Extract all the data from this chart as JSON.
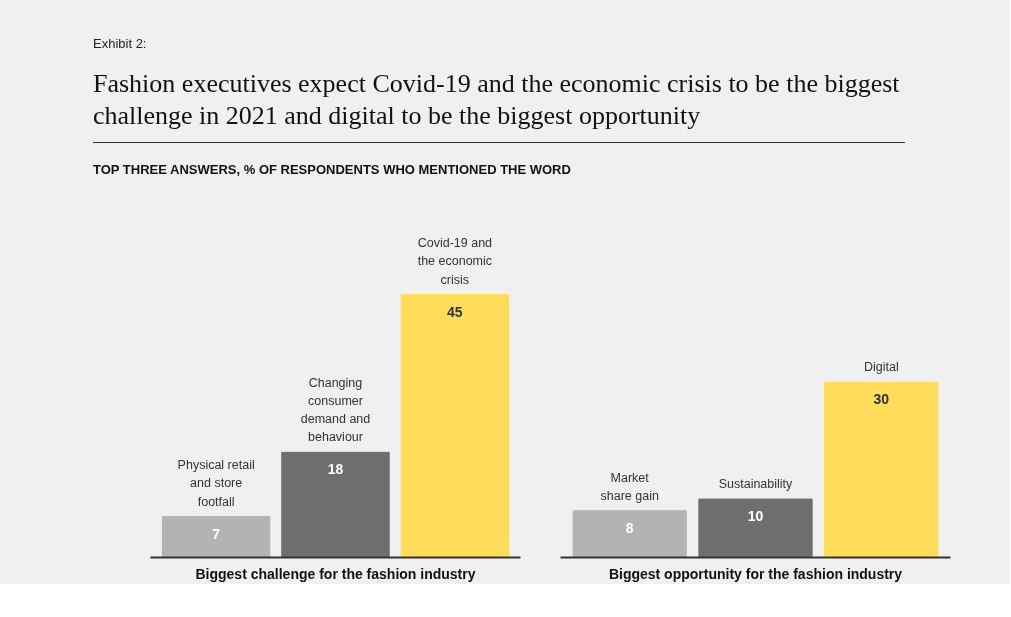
{
  "chart_data": [
    {
      "type": "bar",
      "annotations": [
        "Exhibit 2:"
      ],
      "title": "Fashion executives expect Covid-19 and the economic crisis to be the biggest challenge in 2021 and digital to be the biggest opportunity",
      "subtitle": "TOP THREE ANSWERS, % OF RESPONDENTS WHO MENTIONED THE WORD",
      "xlabel": "Biggest challenge for the fashion industry",
      "categories": [
        "Physical retail\nand store\nfootfall",
        "Changing\nconsumer\ndemand and\nbehaviour",
        "Covid-19 and\nthe economic\ncrisis"
      ],
      "values": [
        7,
        18,
        45
      ],
      "colors": [
        "#b3b3b3",
        "#6e6e6e",
        "#ffdc5a"
      ],
      "data_labels": true
    },
    {
      "type": "bar",
      "xlabel": "Biggest opportunity for the fashion industry",
      "categories": [
        "Market\nshare gain",
        "Sustainability",
        "Digital"
      ],
      "values": [
        8,
        10,
        30
      ],
      "colors": [
        "#b3b3b3",
        "#6e6e6e",
        "#ffdc5a"
      ],
      "data_labels": true
    }
  ]
}
